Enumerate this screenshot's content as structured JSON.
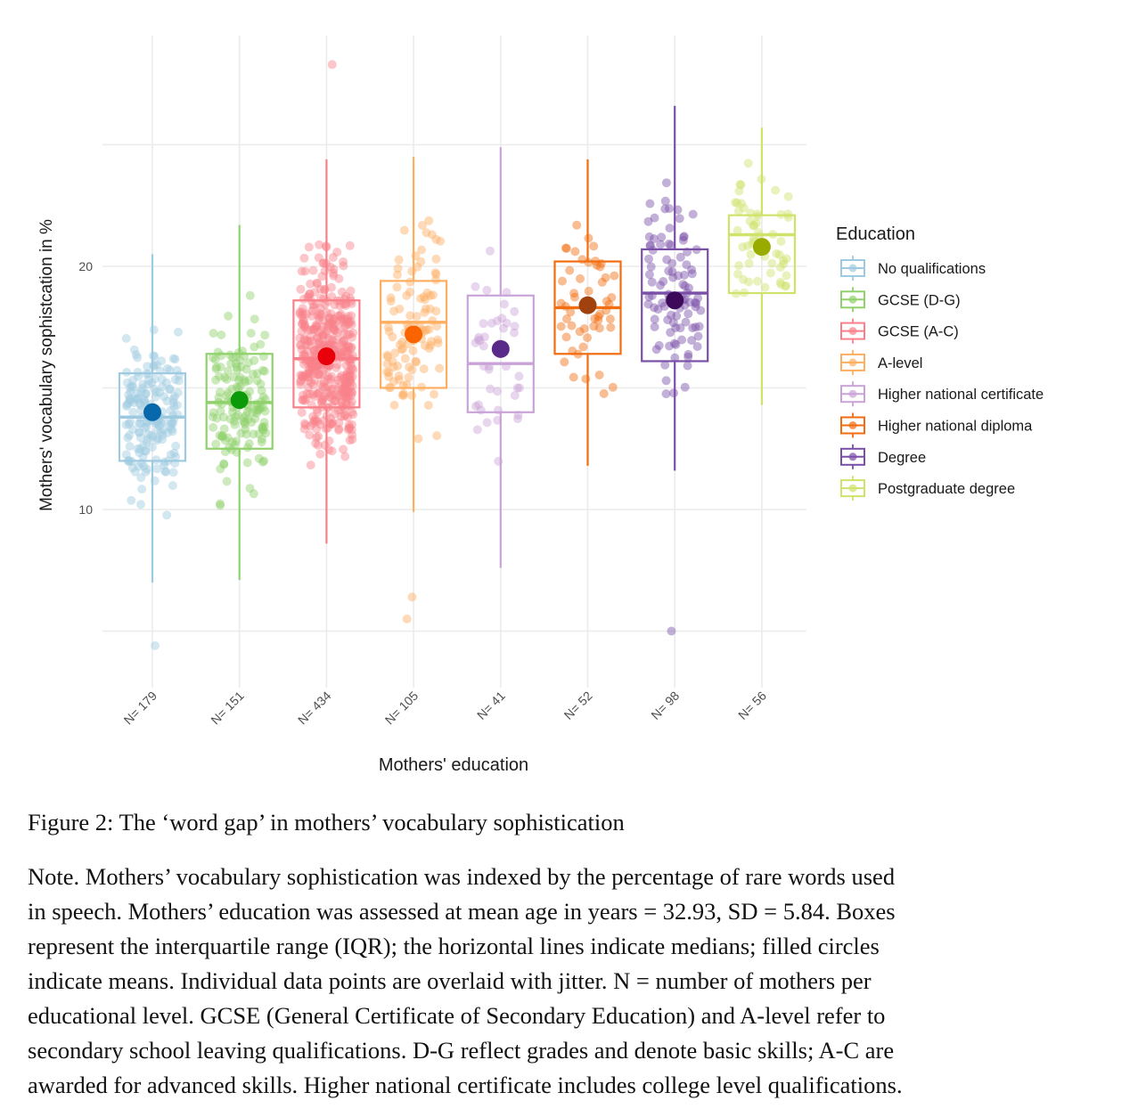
{
  "chart_data": {
    "type": "boxplot",
    "title": "",
    "xlabel": "Mothers' education",
    "ylabel": "Mothers' vocabulary sophistcation in %",
    "ylim": [
      3,
      28
    ],
    "yticks": [
      10,
      20
    ],
    "grid_major": [
      5,
      10,
      15,
      20,
      25
    ],
    "grid": true,
    "legend": {
      "title": "Education",
      "position": "right"
    },
    "categories": [
      "N= 179",
      "N= 151",
      "N= 434",
      "N= 105",
      "N= 41",
      "N= 52",
      "N= 98",
      "N= 56"
    ],
    "series": [
      {
        "name": "No qualifications",
        "n": 179,
        "color": "#9ecae1",
        "mean_color": "#0868ac",
        "whisker_low": 7.0,
        "q1": 12.0,
        "median": 13.8,
        "q3": 15.6,
        "whisker_high": 20.5,
        "mean": 14.0,
        "outliers": [
          4.4
        ],
        "point_range": [
          4.4,
          21.6
        ]
      },
      {
        "name": "GCSE (D-G)",
        "n": 151,
        "color": "#8fd16a",
        "mean_color": "#0a9a0a",
        "whisker_low": 7.1,
        "q1": 12.5,
        "median": 14.4,
        "q3": 16.4,
        "whisker_high": 21.7,
        "mean": 14.5,
        "outliers": [],
        "point_range": [
          7.1,
          21.8
        ]
      },
      {
        "name": "GCSE (A-C)",
        "n": 434,
        "color": "#f9808a",
        "mean_color": "#e8000b",
        "whisker_low": 8.6,
        "q1": 14.2,
        "median": 16.2,
        "q3": 18.6,
        "whisker_high": 24.4,
        "mean": 16.3,
        "outliers": [
          28.3
        ],
        "point_range": [
          8.6,
          28.3
        ]
      },
      {
        "name": "A-level",
        "n": 105,
        "color": "#fdae61",
        "mean_color": "#fa6400",
        "whisker_low": 9.9,
        "q1": 15.0,
        "median": 17.7,
        "q3": 19.4,
        "whisker_high": 24.5,
        "mean": 17.2,
        "outliers": [
          6.4,
          5.5
        ],
        "point_range": [
          5.5,
          24.5
        ]
      },
      {
        "name": "Higher national certificate",
        "n": 41,
        "color": "#c9a3d8",
        "mean_color": "#5a2a8a",
        "whisker_low": 7.6,
        "q1": 14.0,
        "median": 16.0,
        "q3": 18.8,
        "whisker_high": 24.9,
        "mean": 16.6,
        "outliers": [],
        "point_range": [
          7.5,
          24.9
        ]
      },
      {
        "name": "Higher national diploma",
        "n": 52,
        "color": "#f26c10",
        "mean_color": "#a0410e",
        "whisker_low": 11.8,
        "q1": 16.4,
        "median": 18.3,
        "q3": 20.2,
        "whisker_high": 24.4,
        "mean": 18.4,
        "outliers": [],
        "point_range": [
          11.8,
          24.5
        ]
      },
      {
        "name": "Degree",
        "n": 98,
        "color": "#7a4fa8",
        "mean_color": "#3d0a5a",
        "whisker_low": 11.6,
        "q1": 16.1,
        "median": 18.9,
        "q3": 20.7,
        "whisker_high": 26.6,
        "mean": 18.6,
        "outliers": [
          5.0
        ],
        "point_range": [
          5.0,
          26.6
        ]
      },
      {
        "name": "Postgraduate degree",
        "n": 56,
        "color": "#cfe36a",
        "mean_color": "#9aab00",
        "whisker_low": 14.3,
        "q1": 18.9,
        "median": 21.3,
        "q3": 22.1,
        "whisker_high": 25.7,
        "mean": 20.8,
        "outliers": [],
        "point_range": [
          14.2,
          27.7
        ]
      }
    ]
  },
  "caption": {
    "title": "Figure 2: The ‘word gap’ in mothers’ vocabulary sophistication",
    "note_lines": [
      "Note. Mothers’ vocabulary sophistication was indexed by the percentage of rare words used",
      "in speech. Mothers’ education was assessed at mean age in years = 32.93, SD = 5.84. Boxes",
      "represent the interquartile range (IQR); the horizontal lines indicate medians; filled circles",
      "indicate means. Individual data points are overlaid with jitter. N = number of mothers per",
      "educational level. GCSE (General Certificate of Secondary Education) and A-level refer to",
      "secondary school leaving qualifications. D-G reflect grades and denote basic skills; A-C are",
      "awarded for advanced skills. Higher national certificate includes college level qualifications."
    ]
  }
}
